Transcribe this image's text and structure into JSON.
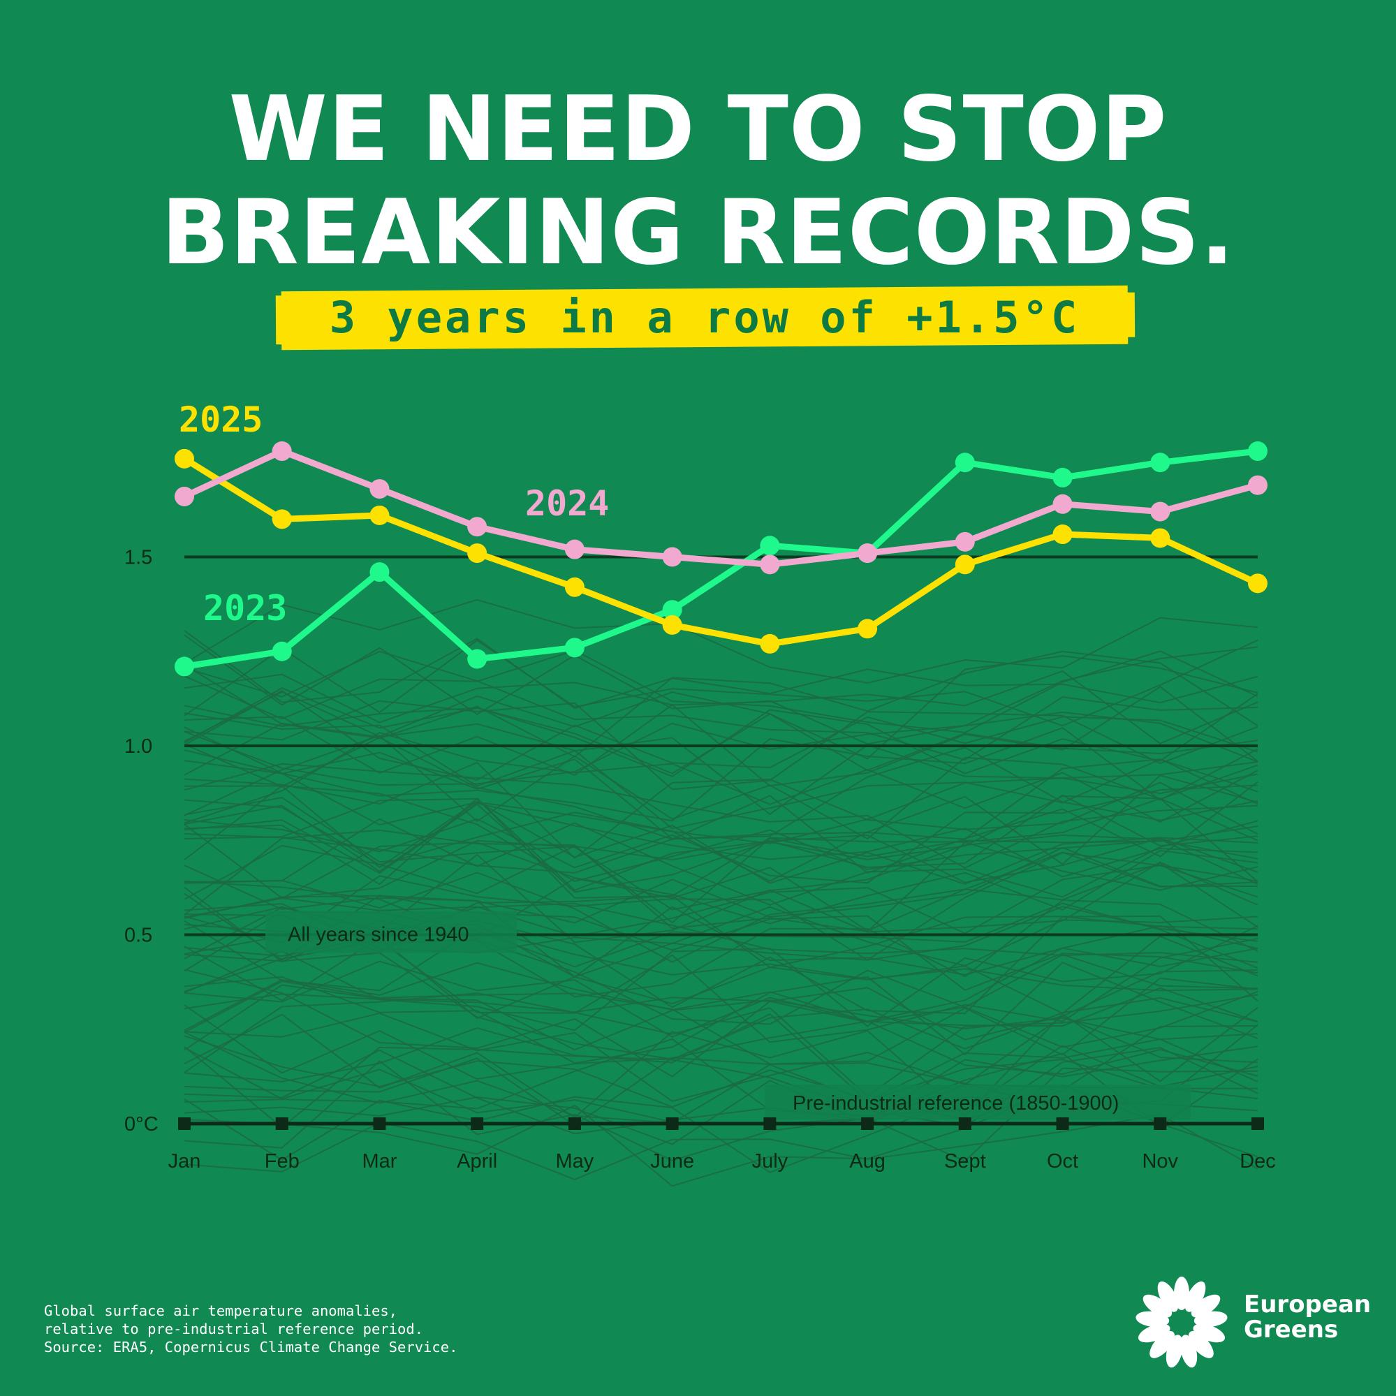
{
  "header": {
    "title_line1": "WE NEED TO STOP",
    "title_line2": "BREAKING RECORDS.",
    "subtitle": "3 years in a row of +1.5°C"
  },
  "colors": {
    "background": "#108a52",
    "series_2025": "#fde100",
    "series_2024": "#f2a9cf",
    "series_2023": "#1ff98c",
    "historic_lines": "#1c6a42",
    "gridline": "#0d3b22"
  },
  "chart_data": {
    "type": "line",
    "categories": [
      "Jan",
      "Feb",
      "Mar",
      "April",
      "May",
      "June",
      "July",
      "Aug",
      "Sept",
      "Oct",
      "Nov",
      "Dec"
    ],
    "yticks": [
      "0°C",
      "0.5",
      "1.0",
      "1.5"
    ],
    "ylim": [
      0,
      1.85
    ],
    "grid": true,
    "series": [
      {
        "name": "2023",
        "color": "#1ff98c",
        "values": [
          1.21,
          1.25,
          1.46,
          1.23,
          1.26,
          1.36,
          1.53,
          1.51,
          1.75,
          1.71,
          1.75,
          1.78
        ]
      },
      {
        "name": "2024",
        "color": "#f2a9cf",
        "values": [
          1.66,
          1.78,
          1.68,
          1.58,
          1.52,
          1.5,
          1.48,
          1.51,
          1.54,
          1.64,
          1.62,
          1.69
        ]
      },
      {
        "name": "2025",
        "color": "#fde100",
        "values": [
          1.76,
          1.6,
          1.61,
          1.51,
          1.42,
          1.32,
          1.27,
          1.31,
          1.48,
          1.56,
          1.55,
          1.43
        ]
      }
    ],
    "annotations": {
      "historic": "All years since 1940",
      "reference": "Pre-industrial reference (1850-1900)"
    }
  },
  "footnote": {
    "line1": "Global surface air temperature anomalies,",
    "line2": "relative to pre-industrial reference period.",
    "line3": "Source: ERA5, Copernicus Climate Change Service."
  },
  "logo": {
    "icon": "sunflower-logo-icon",
    "line1": "European",
    "line2": "Greens"
  }
}
